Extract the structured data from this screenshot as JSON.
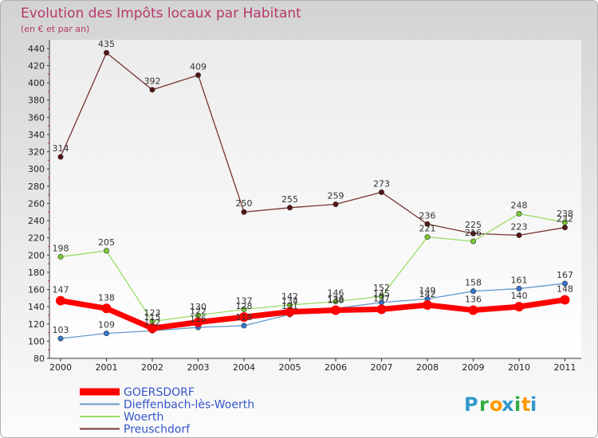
{
  "chart_data": {
    "type": "line",
    "title": "Evolution des Impôts locaux par Habitant",
    "subtitle": "(en € et par an)",
    "xlabel": "",
    "ylabel": "",
    "categories": [
      "2000",
      "2001",
      "2002",
      "2003",
      "2004",
      "2005",
      "2006",
      "2007",
      "2008",
      "2009",
      "2010",
      "2011"
    ],
    "ylim": [
      80,
      450
    ],
    "yticks": [
      80,
      100,
      120,
      140,
      160,
      180,
      200,
      220,
      240,
      260,
      280,
      300,
      320,
      340,
      360,
      380,
      400,
      420,
      440
    ],
    "grid": false,
    "legend_position": "bottom-left",
    "series": [
      {
        "name": "GOERSDORF",
        "color": "#ff0000",
        "marker": "#ff0000",
        "values": [
          147,
          138,
          115,
          122,
          128,
          134,
          136,
          137,
          142,
          136,
          140,
          148
        ]
      },
      {
        "name": "Dieffenbach-lès-Woerth",
        "color": "#6699cc",
        "marker": "#3377cc",
        "values": [
          103,
          109,
          112,
          116,
          118,
          131,
          138,
          145,
          149,
          158,
          161,
          167
        ]
      },
      {
        "name": "Woerth",
        "color": "#99dd66",
        "marker": "#77cc33",
        "values": [
          198,
          205,
          123,
          130,
          137,
          142,
          146,
          152,
          221,
          216,
          248,
          238
        ]
      },
      {
        "name": "Preuschdorf",
        "color": "#773333",
        "marker": "#551515",
        "values": [
          314,
          435,
          392,
          409,
          250,
          255,
          259,
          273,
          236,
          225,
          223,
          232
        ]
      }
    ],
    "data_labels": [
      {
        "series": "GOERSDORF",
        "labels": [
          "147",
          "138",
          "115",
          "122",
          "128",
          "134",
          "136",
          "137",
          "142",
          "136",
          "140",
          "148"
        ]
      },
      {
        "series": "Dieffenbach-lès-Woerth",
        "labels": [
          "103",
          "109",
          "112",
          "116",
          "118",
          "131",
          "138",
          "145",
          "149",
          "158",
          "161",
          "167"
        ]
      },
      {
        "series": "Woerth",
        "labels": [
          "198",
          "205",
          "123",
          "130",
          "137",
          "142",
          "146",
          "152",
          "221",
          "216",
          "248",
          "238"
        ]
      },
      {
        "series": "Preuschdorf",
        "labels": [
          "314",
          "435",
          "392",
          "409",
          "250",
          "255",
          "259",
          "273",
          "236",
          "225",
          "223",
          "232"
        ]
      }
    ]
  },
  "logo": {
    "text": "Proxiti",
    "letters": [
      "P",
      "r",
      "o",
      "x",
      "i",
      "t",
      "i"
    ],
    "colors": [
      "#3399cc",
      "#33aa44",
      "#ff9900",
      "#3399cc",
      "#33aa44",
      "#ff9900",
      "#3399cc"
    ]
  }
}
